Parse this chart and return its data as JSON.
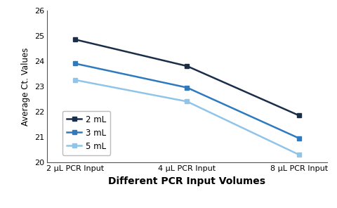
{
  "title": "",
  "xlabel": "Different PCR Input Volumes",
  "ylabel": "Average Ct. Values",
  "x_labels": [
    "2 μL PCR Input",
    "4 μL PCR Input",
    "8 μL PCR Input"
  ],
  "x_positions": [
    0,
    1,
    2
  ],
  "series": [
    {
      "label": "2 mL",
      "values": [
        24.85,
        23.8,
        21.85
      ],
      "color": "#1a2e4a",
      "marker": "s",
      "linewidth": 1.8
    },
    {
      "label": "3 mL",
      "values": [
        23.9,
        22.95,
        20.95
      ],
      "color": "#2e7abf",
      "marker": "s",
      "linewidth": 1.8
    },
    {
      "label": "5 mL",
      "values": [
        23.25,
        22.4,
        20.3
      ],
      "color": "#90c4e8",
      "marker": "s",
      "linewidth": 1.8
    }
  ],
  "ylim": [
    20,
    26
  ],
  "yticks": [
    20,
    21,
    22,
    23,
    24,
    25,
    26
  ],
  "background_color": "#ffffff",
  "xlabel_fontsize": 10,
  "ylabel_fontsize": 8.5,
  "tick_fontsize": 8,
  "legend_fontsize": 8.5,
  "markersize": 5
}
